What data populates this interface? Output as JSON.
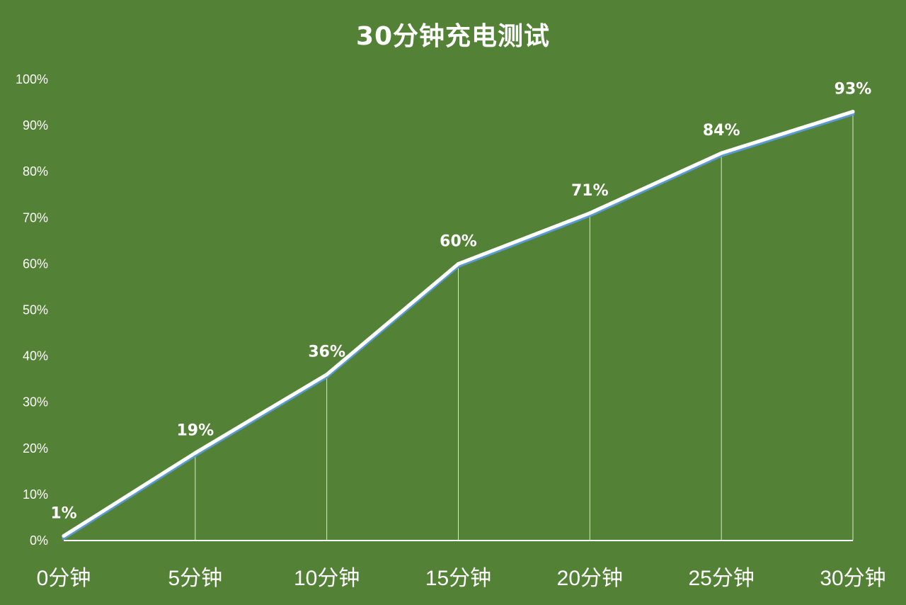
{
  "chart_data": {
    "type": "line",
    "title": "30分钟充电测试",
    "xlabel": "",
    "ylabel": "",
    "categories": [
      "0分钟",
      "5分钟",
      "10分钟",
      "15分钟",
      "20分钟",
      "25分钟",
      "30分钟"
    ],
    "series": [
      {
        "values": [
          1,
          19,
          36,
          60,
          71,
          84,
          93
        ],
        "data_labels": [
          "1%",
          "19%",
          "36%",
          "60%",
          "71%",
          "84%",
          "93%"
        ]
      }
    ],
    "ylim": [
      0,
      100
    ],
    "yticks": [
      "0%",
      "10%",
      "20%",
      "30%",
      "40%",
      "50%",
      "60%",
      "70%",
      "80%",
      "90%",
      "100%"
    ],
    "grid": false,
    "drop_lines": true,
    "legend": "none",
    "colors": {
      "background": "#538135",
      "line": "#ffffff",
      "line_shadow": "#5b9bd5",
      "text": "#ffffff",
      "drop_line": "#d9e8cc"
    }
  }
}
